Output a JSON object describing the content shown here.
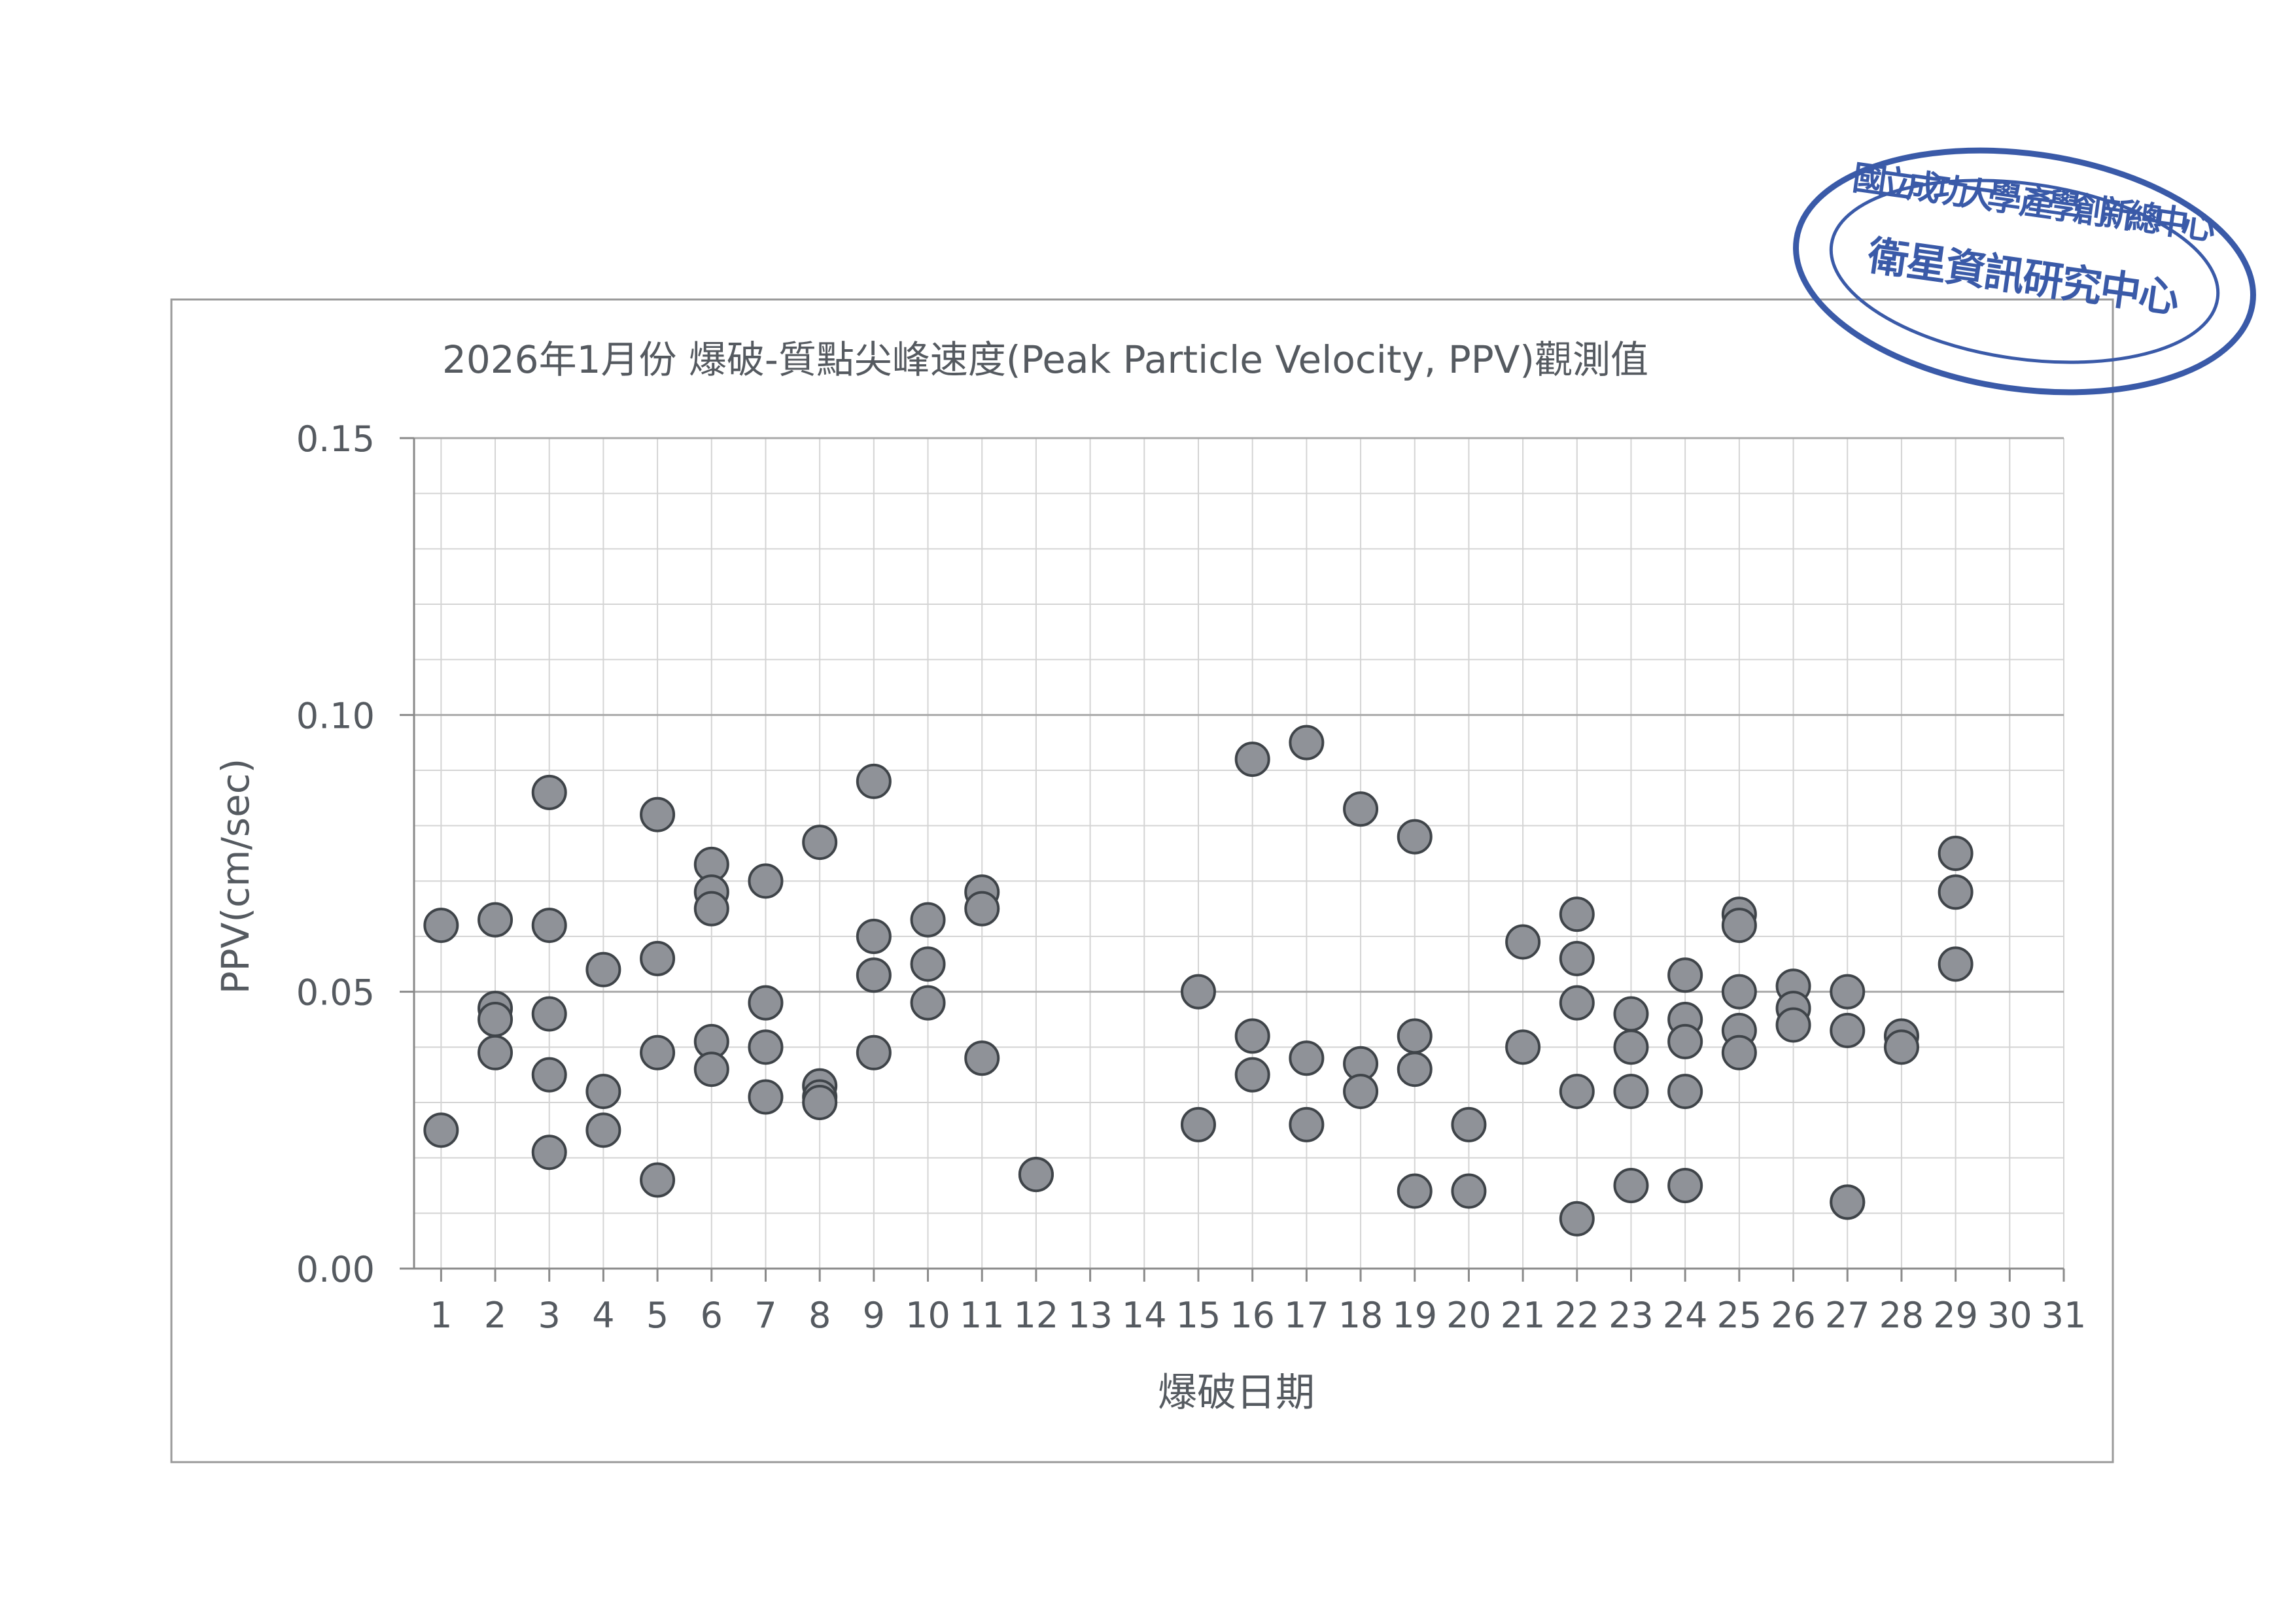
{
  "chart_data": {
    "type": "scatter",
    "title": "2026年1月份 爆破-質點尖峰速度(Peak Particle Velocity, PPV)觀測值",
    "xlabel": "爆破日期",
    "ylabel": "PPV(cm/sec)",
    "xlim": [
      1,
      31
    ],
    "ylim": [
      0,
      0.15
    ],
    "x_ticks": [
      "1",
      "2",
      "3",
      "4",
      "5",
      "6",
      "7",
      "8",
      "9",
      "10",
      "11",
      "12",
      "13",
      "14",
      "15",
      "16",
      "17",
      "18",
      "19",
      "20",
      "21",
      "22",
      "23",
      "24",
      "25",
      "26",
      "27",
      "28",
      "29",
      "30",
      "31"
    ],
    "y_ticks": [
      "0.00",
      "0.05",
      "0.10",
      "0.15"
    ],
    "grid": true,
    "legend": "none",
    "marker_color": "#8f9298",
    "marker_edge_color": "#3f4449",
    "series": [
      {
        "points": [
          [
            1,
            0.062
          ],
          [
            1,
            0.025
          ],
          [
            2,
            0.063
          ],
          [
            2,
            0.047
          ],
          [
            2,
            0.045
          ],
          [
            2,
            0.039
          ],
          [
            3,
            0.086
          ],
          [
            3,
            0.062
          ],
          [
            3,
            0.046
          ],
          [
            3,
            0.035
          ],
          [
            3,
            0.021
          ],
          [
            4,
            0.054
          ],
          [
            4,
            0.032
          ],
          [
            4,
            0.025
          ],
          [
            5,
            0.082
          ],
          [
            5,
            0.056
          ],
          [
            5,
            0.039
          ],
          [
            5,
            0.016
          ],
          [
            6,
            0.073
          ],
          [
            6,
            0.068
          ],
          [
            6,
            0.065
          ],
          [
            6,
            0.041
          ],
          [
            6,
            0.036
          ],
          [
            7,
            0.07
          ],
          [
            7,
            0.048
          ],
          [
            7,
            0.04
          ],
          [
            7,
            0.031
          ],
          [
            8,
            0.077
          ],
          [
            8,
            0.033
          ],
          [
            8,
            0.031
          ],
          [
            8,
            0.03
          ],
          [
            9,
            0.088
          ],
          [
            9,
            0.06
          ],
          [
            9,
            0.053
          ],
          [
            9,
            0.039
          ],
          [
            10,
            0.063
          ],
          [
            10,
            0.055
          ],
          [
            10,
            0.048
          ],
          [
            11,
            0.068
          ],
          [
            11,
            0.065
          ],
          [
            11,
            0.038
          ],
          [
            12,
            0.017
          ],
          [
            12,
            0.017
          ],
          [
            15,
            0.05
          ],
          [
            15,
            0.026
          ],
          [
            16,
            0.092
          ],
          [
            16,
            0.042
          ],
          [
            16,
            0.035
          ],
          [
            17,
            0.095
          ],
          [
            17,
            0.038
          ],
          [
            17,
            0.026
          ],
          [
            18,
            0.083
          ],
          [
            18,
            0.037
          ],
          [
            18,
            0.032
          ],
          [
            19,
            0.078
          ],
          [
            19,
            0.042
          ],
          [
            19,
            0.036
          ],
          [
            19,
            0.014
          ],
          [
            20,
            0.026
          ],
          [
            20,
            0.014
          ],
          [
            21,
            0.059
          ],
          [
            21,
            0.04
          ],
          [
            22,
            0.064
          ],
          [
            22,
            0.056
          ],
          [
            22,
            0.048
          ],
          [
            22,
            0.032
          ],
          [
            22,
            0.009
          ],
          [
            23,
            0.046
          ],
          [
            23,
            0.04
          ],
          [
            23,
            0.032
          ],
          [
            23,
            0.015
          ],
          [
            24,
            0.053
          ],
          [
            24,
            0.045
          ],
          [
            24,
            0.041
          ],
          [
            24,
            0.032
          ],
          [
            24,
            0.015
          ],
          [
            25,
            0.064
          ],
          [
            25,
            0.062
          ],
          [
            25,
            0.05
          ],
          [
            25,
            0.043
          ],
          [
            25,
            0.039
          ],
          [
            26,
            0.051
          ],
          [
            26,
            0.047
          ],
          [
            26,
            0.044
          ],
          [
            27,
            0.05
          ],
          [
            27,
            0.043
          ],
          [
            27,
            0.012
          ],
          [
            27,
            0.012
          ],
          [
            28,
            0.042
          ],
          [
            28,
            0.04
          ],
          [
            29,
            0.075
          ],
          [
            29,
            0.068
          ],
          [
            29,
            0.055
          ]
        ]
      }
    ]
  },
  "seal": {
    "outer_text": "國立成功大學 產學創新總中心",
    "inner_text": "衛星資訊研究中心",
    "color": "#3a5aa8"
  }
}
